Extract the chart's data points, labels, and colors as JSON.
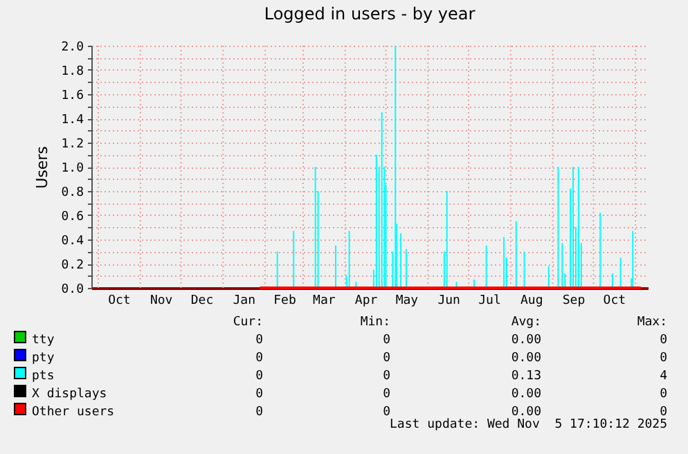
{
  "chart_data": {
    "type": "bar",
    "title": "Logged in users - by year",
    "ylabel": "Users",
    "xlim": [
      "2024-10-01",
      "2025-11-05"
    ],
    "xticks": [
      {
        "value": "2024-10-01",
        "label": null
      },
      {
        "value": "2024-10-16",
        "label": "Oct"
      },
      {
        "value": "2024-11-01",
        "label": null
      },
      {
        "value": "2024-11-16",
        "label": "Nov"
      },
      {
        "value": "2024-12-01",
        "label": null
      },
      {
        "value": "2024-12-16",
        "label": "Dec"
      },
      {
        "value": "2025-01-01",
        "label": null
      },
      {
        "value": "2025-01-16",
        "label": "Jan"
      },
      {
        "value": "2025-02-01",
        "label": null
      },
      {
        "value": "2025-02-15",
        "label": "Feb"
      },
      {
        "value": "2025-03-01",
        "label": null
      },
      {
        "value": "2025-03-16",
        "label": "Mar"
      },
      {
        "value": "2025-04-01",
        "label": null
      },
      {
        "value": "2025-04-16",
        "label": "Apr"
      },
      {
        "value": "2025-05-01",
        "label": null
      },
      {
        "value": "2025-05-16",
        "label": "May"
      },
      {
        "value": "2025-06-01",
        "label": null
      },
      {
        "value": "2025-06-16",
        "label": "Jun"
      },
      {
        "value": "2025-07-01",
        "label": null
      },
      {
        "value": "2025-07-16",
        "label": "Jul"
      },
      {
        "value": "2025-08-01",
        "label": null
      },
      {
        "value": "2025-08-16",
        "label": "Aug"
      },
      {
        "value": "2025-09-01",
        "label": null
      },
      {
        "value": "2025-09-16",
        "label": "Sep"
      },
      {
        "value": "2025-10-01",
        "label": null
      },
      {
        "value": "2025-10-16",
        "label": "Oct"
      },
      {
        "value": "2025-11-01",
        "label": null
      }
    ],
    "ylim": [
      0,
      2.0
    ],
    "yticks": [
      {
        "value": 0,
        "label": "0.0"
      },
      {
        "value": 0.1,
        "label": null
      },
      {
        "value": 0.2,
        "label": "0.2"
      },
      {
        "value": 0.3,
        "label": null
      },
      {
        "value": 0.4,
        "label": "0.4"
      },
      {
        "value": 0.5,
        "label": null
      },
      {
        "value": 0.6,
        "label": "0.6"
      },
      {
        "value": 0.7,
        "label": null
      },
      {
        "value": 0.8,
        "label": "0.8"
      },
      {
        "value": 0.9,
        "label": null
      },
      {
        "value": 1.0,
        "label": "1.0"
      },
      {
        "value": 1.1,
        "label": null
      },
      {
        "value": 1.2,
        "label": "1.2"
      },
      {
        "value": 1.3,
        "label": null
      },
      {
        "value": 1.4,
        "label": "1.4"
      },
      {
        "value": 1.5,
        "label": null
      },
      {
        "value": 1.6,
        "label": "1.6"
      },
      {
        "value": 1.7,
        "label": null
      },
      {
        "value": 1.8,
        "label": "1.8"
      },
      {
        "value": 1.9,
        "label": null
      },
      {
        "value": 2.0,
        "label": "2.0"
      }
    ],
    "grid": true,
    "legend": "bottom",
    "series": [
      {
        "name": "tty",
        "color": "#00cc00",
        "type": "line"
      },
      {
        "name": "pty",
        "color": "#0000ff",
        "type": "line"
      },
      {
        "name": "pts",
        "color": "#00ffff",
        "x": [
          "2025-02-10",
          "2025-02-22",
          "2025-03-10",
          "2025-03-12",
          "2025-03-25",
          "2025-04-02",
          "2025-04-04",
          "2025-04-09",
          "2025-04-22",
          "2025-04-24",
          "2025-04-26",
          "2025-04-28",
          "2025-04-30",
          "2025-05-01",
          "2025-05-06",
          "2025-05-08",
          "2025-05-09",
          "2025-05-12",
          "2025-05-16",
          "2025-06-13",
          "2025-06-15",
          "2025-06-22",
          "2025-07-05",
          "2025-07-14",
          "2025-07-27",
          "2025-07-29",
          "2025-08-05",
          "2025-08-11",
          "2025-08-29",
          "2025-09-05",
          "2025-09-08",
          "2025-09-10",
          "2025-09-14",
          "2025-09-16",
          "2025-09-18",
          "2025-09-20",
          "2025-09-22",
          "2025-10-06",
          "2025-10-15",
          "2025-10-21",
          "2025-10-29",
          "2025-10-30"
        ],
        "values": [
          0.3,
          0.47,
          1.0,
          0.8,
          0.35,
          0.1,
          0.47,
          0.05,
          0.15,
          1.1,
          1.0,
          1.45,
          1.0,
          0.85,
          0.3,
          2.0,
          0.53,
          0.45,
          0.32,
          0.3,
          0.8,
          0.05,
          0.07,
          0.35,
          0.42,
          0.25,
          0.55,
          0.3,
          0.18,
          1.0,
          0.37,
          0.12,
          0.82,
          1.0,
          0.5,
          1.0,
          0.37,
          0.62,
          0.12,
          0.25,
          0.08,
          0.47
        ]
      },
      {
        "name": "X displays",
        "color": "#000000",
        "type": "line"
      },
      {
        "name": "Other users",
        "color": "#ff0000",
        "type": "line",
        "x": [
          "2025-01-28",
          "2025-11-05"
        ],
        "values": [
          0,
          0
        ]
      }
    ],
    "annotations": [
      "Cur:",
      "Min:",
      "Avg:",
      "Max:",
      "0",
      "0",
      "0.00",
      "0",
      "0",
      "0",
      "0.00",
      "0",
      "0",
      "0",
      "0.13",
      "4",
      "0",
      "0",
      "0.00",
      "0",
      "0",
      "0",
      "0.00",
      "0",
      "Last update: Wed Nov  5 17:10:12 2025"
    ]
  }
}
